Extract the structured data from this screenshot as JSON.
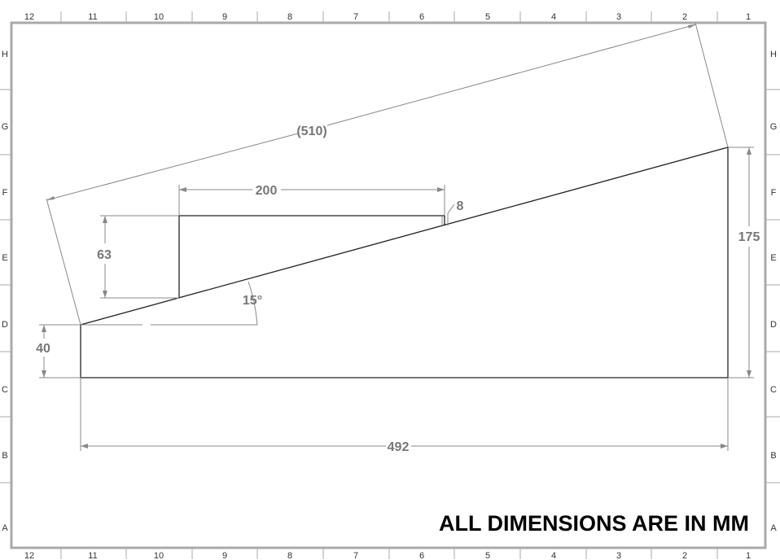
{
  "sheet": {
    "column_labels_top": [
      "12",
      "11",
      "10",
      "9",
      "8",
      "7",
      "6",
      "5",
      "4",
      "3",
      "2",
      "1"
    ],
    "column_labels_bottom": [
      "12",
      "11",
      "10",
      "9",
      "8",
      "7",
      "6",
      "5",
      "4",
      "3",
      "2",
      "1"
    ],
    "row_labels": [
      "H",
      "G",
      "F",
      "E",
      "D",
      "C",
      "B",
      "A"
    ]
  },
  "dimensions": {
    "overall_slant": "(510)",
    "step_length": "200",
    "step_offset": "8",
    "step_height": "63",
    "angle": "15°",
    "left_height": "40",
    "right_height": "175",
    "base_length": "492"
  },
  "note": "ALL DIMENSIONS ARE IN MM",
  "colors": {
    "outline": "#222222",
    "dimension": "#888888",
    "dimension_text": "#777777",
    "border": "#aaaaaa"
  }
}
